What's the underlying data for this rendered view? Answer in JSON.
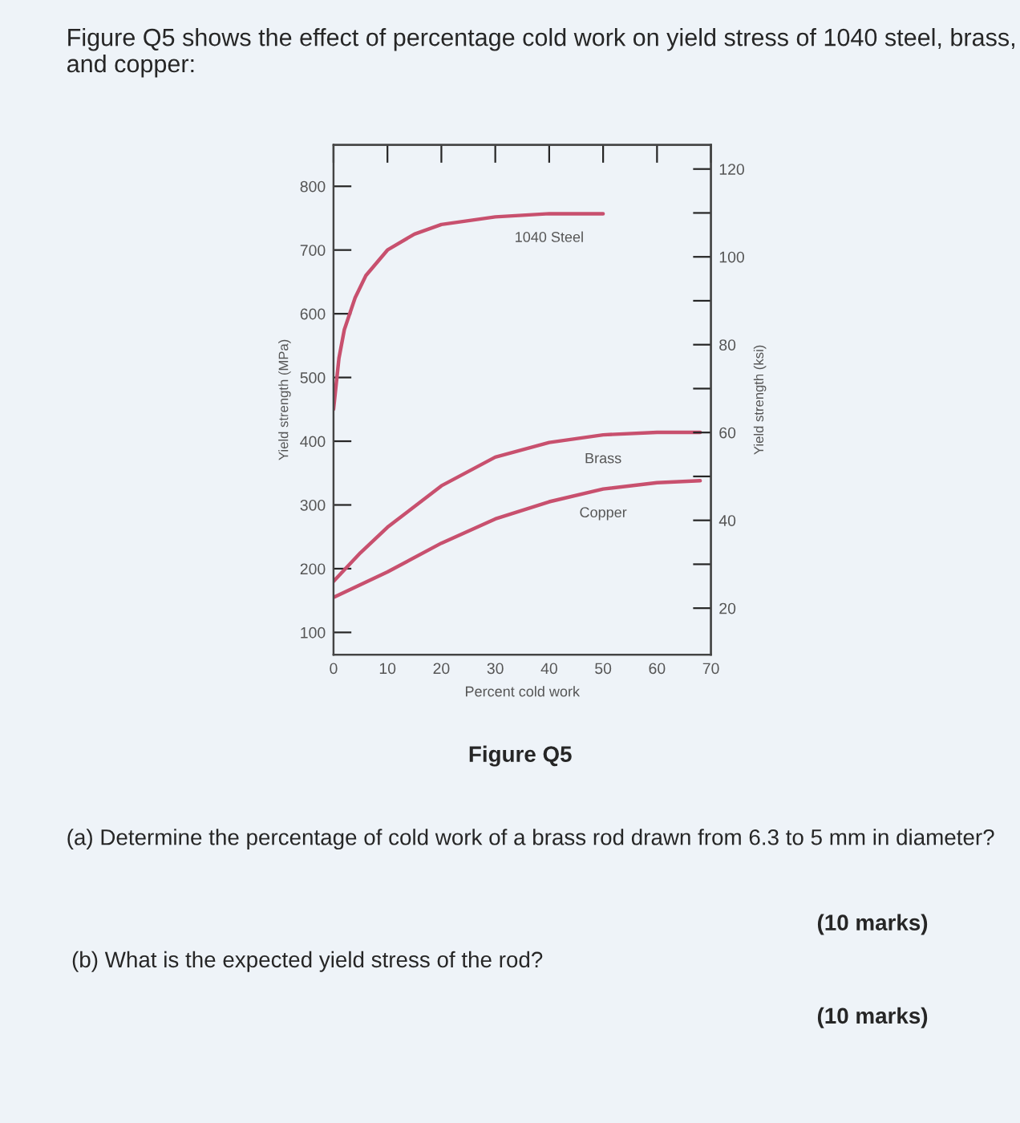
{
  "chart_data": {
    "type": "line",
    "title": "Figure Q5 shows the effect of percentage cold work on yield stress of 1040 steel, brass, and copper:",
    "xlabel": "Percent cold work",
    "ylabel": "Yield strength (MPa)",
    "y2label": "Yield strength (ksi)",
    "annotations": [
      "Figure Q5",
      "(a) Determine the percentage of cold work of a brass rod drawn from 6.3 to 5 mm in diameter?",
      "(10 marks)",
      "(b) What is the expected yield stress of the rod?",
      "(10 marks)"
    ],
    "series": [
      {
        "name": "1040 Steel",
        "color": "#c8506e",
        "x": [
          0,
          1,
          2,
          4,
          6,
          10,
          15,
          20,
          30,
          40,
          50
        ],
        "values": [
          450,
          530,
          575,
          625,
          660,
          700,
          725,
          740,
          752,
          757,
          757
        ]
      },
      {
        "name": "Brass",
        "color": "#c8506e",
        "x": [
          0,
          5,
          10,
          20,
          30,
          40,
          50,
          60,
          68
        ],
        "values": [
          180,
          225,
          265,
          330,
          375,
          398,
          410,
          414,
          414
        ]
      },
      {
        "name": "Copper",
        "color": "#c8506e",
        "x": [
          0,
          10,
          20,
          30,
          40,
          50,
          60,
          68
        ],
        "values": [
          155,
          195,
          240,
          278,
          305,
          325,
          335,
          338
        ]
      }
    ],
    "xlim": [
      0,
      70
    ],
    "xticks": [
      0,
      10,
      20,
      30,
      40,
      50,
      60,
      70
    ],
    "ylim": [
      65,
      865
    ],
    "yticks": [
      100,
      200,
      300,
      400,
      500,
      600,
      700,
      800
    ],
    "y2lim": [
      9.4,
      125.5
    ],
    "y2ticks": [
      20,
      {
        "value": 30,
        "label": null
      },
      40,
      {
        "value": 50,
        "label": null
      },
      60,
      {
        "value": 70,
        "label": null
      },
      80,
      {
        "value": 90,
        "label": null
      },
      100,
      {
        "value": 110,
        "label": null
      },
      120
    ],
    "grid": false,
    "legend": false,
    "marker": "none",
    "line_style": "solid"
  }
}
